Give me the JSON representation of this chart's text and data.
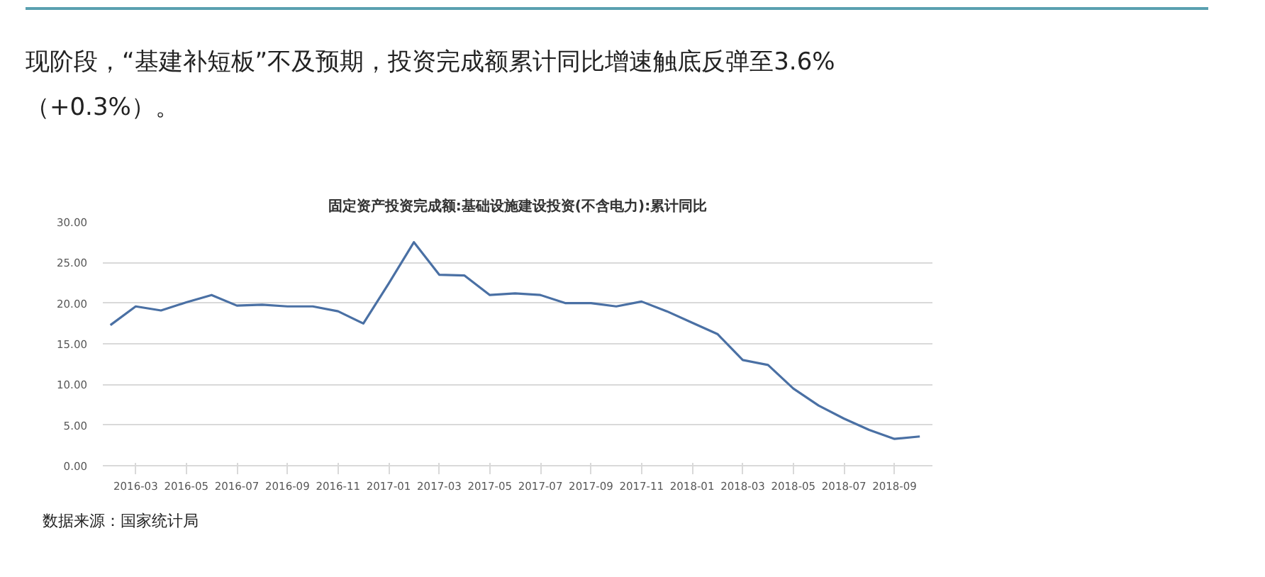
{
  "chart_data": {
    "type": "line",
    "title": "固定资产投资完成额:基础设施建设投资(不含电力):累计同比",
    "categories": [
      null,
      "2016-03",
      null,
      "2016-05",
      null,
      "2016-07",
      null,
      "2016-09",
      null,
      "2016-11",
      null,
      "2017-01",
      null,
      "2017-03",
      null,
      "2017-05",
      null,
      "2017-07",
      null,
      "2017-09",
      null,
      "2017-11",
      null,
      "2018-01",
      null,
      "2018-03",
      null,
      "2018-05",
      null,
      "2018-07",
      null,
      "2018-09",
      null
    ],
    "series": [
      {
        "color": "#4a70a4",
        "values": [
          17.3,
          19.6,
          19.1,
          20.1,
          21.0,
          19.7,
          19.8,
          19.6,
          19.6,
          19.0,
          17.5,
          22.4,
          27.5,
          23.5,
          23.4,
          21.0,
          21.2,
          21.0,
          20.0,
          20.0,
          19.6,
          20.2,
          19.0,
          17.6,
          16.2,
          13.0,
          12.4,
          9.5,
          7.4,
          5.8,
          4.4,
          3.3,
          3.6
        ]
      }
    ],
    "ylim": [
      0,
      30
    ],
    "yticks": [
      {
        "value": 0,
        "label": "0.00"
      },
      {
        "value": 5,
        "label": "5.00"
      },
      {
        "value": 10,
        "label": "10.00"
      },
      {
        "value": 15,
        "label": "15.00"
      },
      {
        "value": 20,
        "label": "20.00"
      },
      {
        "value": 25,
        "label": "25.00"
      },
      {
        "value": 30,
        "label": "30.00"
      }
    ],
    "grid": "y",
    "marker": "none",
    "line_style": "solid",
    "annotations": [
      "现阶段，“基建补短板”不及预期，投资完成额累计同比增速触底反弹至3.6%（+0.3%）。",
      "数据来源：国家统计局"
    ]
  }
}
